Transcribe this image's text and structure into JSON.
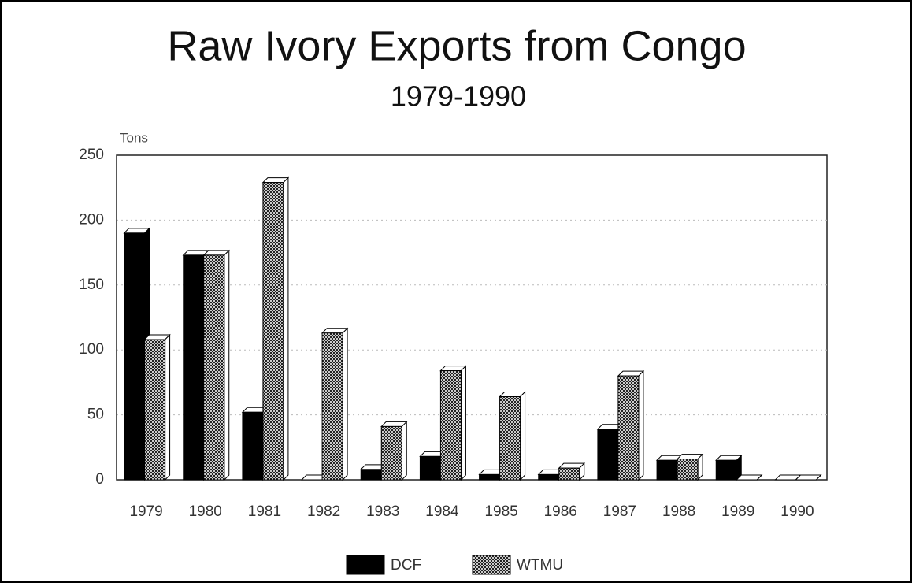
{
  "chart_data": {
    "type": "bar3d",
    "title": "Raw Ivory Exports from Congo",
    "subtitle": "1979-1990",
    "y_label": "Tons",
    "categories": [
      "1979",
      "1980",
      "1981",
      "1982",
      "1983",
      "1984",
      "1985",
      "1986",
      "1987",
      "1988",
      "1989",
      "1990"
    ],
    "series": [
      {
        "name": "DCF",
        "color": "#000000",
        "values": [
          190,
          173,
          52,
          0,
          8,
          18,
          4,
          4,
          39,
          15,
          15,
          0
        ]
      },
      {
        "name": "WTMU",
        "color": "#b8b8b8",
        "values": [
          108,
          173,
          229,
          113,
          41,
          84,
          64,
          9,
          80,
          16,
          0,
          0
        ]
      }
    ],
    "ylim": [
      0,
      250
    ],
    "yticks": [
      0,
      50,
      100,
      150,
      200,
      250
    ],
    "grid": true
  }
}
